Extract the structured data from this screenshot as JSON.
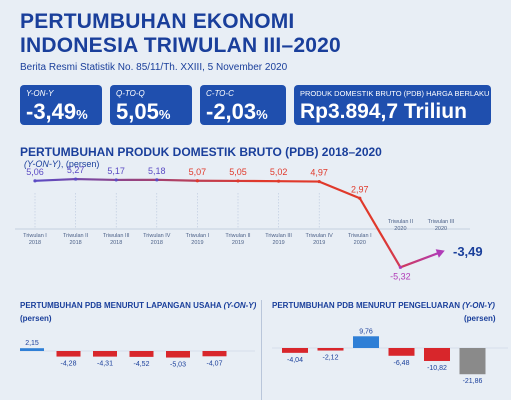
{
  "header": {
    "title_line1": "PERTUMBUHAN EKONOMI",
    "title_line2": "INDONESIA TRIWULAN III–2020",
    "subtitle": "Berita Resmi Statistik No. 85/11/Th. XXIII, 5 November 2020"
  },
  "kpis": [
    {
      "label": "Y-ON-Y",
      "value": "-3,49",
      "unit": "%"
    },
    {
      "label": "Q-TO-Q",
      "value": "5,05",
      "unit": "%"
    },
    {
      "label": "C-TO-C",
      "value": "-2,03",
      "unit": "%"
    },
    {
      "label": "PRODUK DOMESTIK BRUTO (PDB) HARGA BERLAKU",
      "value": "Rp3.894,7 Triliun",
      "unit": ""
    }
  ],
  "main_chart": {
    "title": "PERTUMBUHAN PRODUK DOMESTIK BRUTO (PDB) 2018–2020",
    "subtitle_italic": "(Y-ON-Y)",
    "subtitle_unit": ", (persen)"
  },
  "chart_data": [
    {
      "type": "line",
      "title": "PERTUMBUHAN PRODUK DOMESTIK BRUTO (PDB) 2018–2020",
      "categories": [
        [
          "Triwulan I",
          "2018"
        ],
        [
          "Triwulan II",
          "2018"
        ],
        [
          "Triwulan III",
          "2018"
        ],
        [
          "Triwulan IV",
          "2018"
        ],
        [
          "Triwulan I",
          "2019"
        ],
        [
          "Triwulan II",
          "2019"
        ],
        [
          "Triwulan III",
          "2019"
        ],
        [
          "Triwulan IV",
          "2019"
        ],
        [
          "Triwulan I",
          "2020"
        ],
        [
          "Triwulan II",
          "2020"
        ],
        [
          "Triwulan III",
          "2020"
        ]
      ],
      "values": [
        5.06,
        5.27,
        5.17,
        5.18,
        5.07,
        5.05,
        5.02,
        4.97,
        2.97,
        -5.32,
        -3.49
      ],
      "value_labels": [
        "5,06",
        "5,27",
        "5,17",
        "5,18",
        "5,07",
        "5,05",
        "5,02",
        "4,97",
        "2,97",
        "-5,32",
        "-3,49"
      ],
      "ylim": [
        -6,
        6
      ],
      "colors": {
        "start": "#5b4bc4",
        "mid": "#e0392b",
        "end": "#b03bb7"
      }
    },
    {
      "type": "bar",
      "title": "PERTUMBUHAN PDB MENURUT LAPANGAN USAHA",
      "title_italic": "(Y-ON-Y)",
      "unit": "(persen)",
      "values": [
        2.15,
        -4.28,
        -4.31,
        -4.52,
        -5.03,
        -4.07
      ],
      "value_labels": [
        "2,15",
        "-4,28",
        "-4,31",
        "-4,52",
        "-5,03",
        "-4,07"
      ],
      "colors": {
        "positive": "#2f7fd6",
        "negative": "#d8262b"
      }
    },
    {
      "type": "bar",
      "title": "PERTUMBUHAN PDB MENURUT PENGELUARAN",
      "title_italic": "(Y-ON-Y)",
      "unit": "(persen)",
      "values": [
        -4.04,
        -2.12,
        9.76,
        -6.48,
        -10.82,
        -21.86
      ],
      "value_labels": [
        "-4,04",
        "-2,12",
        "9,76",
        "-6,48",
        "-10,82",
        "-21,86"
      ],
      "colors": {
        "positive": "#2f7fd6",
        "negative": "#d8262b",
        "last": "#8a8a8a"
      }
    }
  ]
}
